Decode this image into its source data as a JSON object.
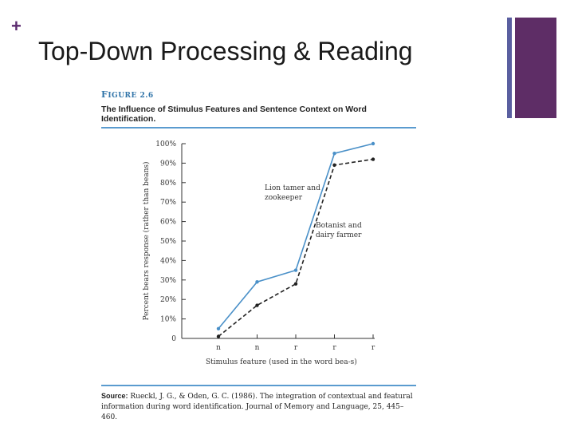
{
  "slide": {
    "plus": "+",
    "title": "Top-Down Processing & Reading"
  },
  "figure": {
    "label_cap": "F",
    "label_rest": "IGURE 2.6",
    "title": "The Influence of Stimulus Features and Sentence Context on Word Identification.",
    "source_lead": "Source:",
    "source_text": "Rueckl, J. G., & Oden, G. C. (1986). The integration of contextual and featural information during word identification. Journal of Memory and Language, 25, 445–460."
  },
  "colors": {
    "accent_purple": "#5e2d66",
    "accent_blue_bar": "#5a5fa0",
    "series_blue": "#4a90c8",
    "series_black": "#222222",
    "rule_blue": "#5a9bcf"
  },
  "chart_data": {
    "type": "line",
    "xlabel": "Stimulus feature (used in the word bea-s)",
    "ylabel": "Percent bears response (rather than beans)",
    "x": [
      "n",
      "n",
      "r",
      "r",
      "r"
    ],
    "yticks": [
      "0",
      "10%",
      "20%",
      "30%",
      "40%",
      "50%",
      "60%",
      "70%",
      "80%",
      "90%",
      "100%"
    ],
    "ylim": [
      0,
      100
    ],
    "grid": false,
    "series": [
      {
        "name": "Lion tamer and zookeeper",
        "values": [
          5,
          29,
          35,
          95,
          100
        ],
        "style": "solid"
      },
      {
        "name": "Botanist and dairy farmer",
        "values": [
          1,
          17,
          28,
          89,
          92
        ],
        "style": "dashed"
      }
    ],
    "annotations": [
      {
        "lines": [
          "Lion tamer and",
          "zookeeper"
        ]
      },
      {
        "lines": [
          "Botanist and",
          "dairy farmer"
        ]
      }
    ]
  }
}
